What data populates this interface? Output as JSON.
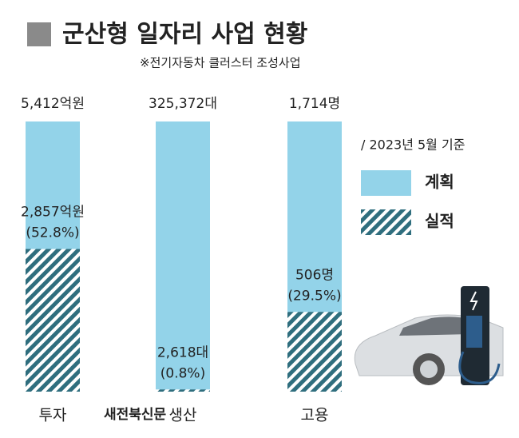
{
  "chart_data": {
    "type": "bar",
    "title": "군산형 일자리 사업 현황",
    "subtitle": "※전기자동차 클러스터 조성사업",
    "note": "/ 2023년 5월 기준",
    "watermark": "새전북신문",
    "categories": [
      "투자",
      "생산",
      "고용"
    ],
    "series": [
      {
        "name": "계획",
        "color": "#93d3e9",
        "values": [
          5412,
          325372,
          1714
        ],
        "value_labels": [
          "5,412억원",
          "325,372대",
          "1,714명"
        ]
      },
      {
        "name": "실적",
        "color": "#2f6e7e",
        "values": [
          2857,
          2618,
          506
        ],
        "value_labels": [
          "2,857억원",
          "2,618대",
          "506명"
        ],
        "shares": [
          52.8,
          0.8,
          29.5
        ],
        "share_labels": [
          "(52.8%)",
          "(0.8%)",
          "(29.5%)"
        ]
      }
    ]
  }
}
